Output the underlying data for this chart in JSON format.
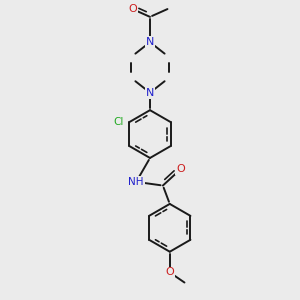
{
  "background_color": "#ebebeb",
  "bond_color": "#1a1a1a",
  "bond_width": 1.4,
  "N_color": "#2020cc",
  "O_color": "#cc2020",
  "Cl_color": "#22aa22",
  "font_size": 8,
  "fig_size": [
    3.0,
    3.0
  ],
  "dpi": 100,
  "xlim": [
    -1.2,
    1.8
  ],
  "ylim": [
    -3.6,
    2.8
  ]
}
